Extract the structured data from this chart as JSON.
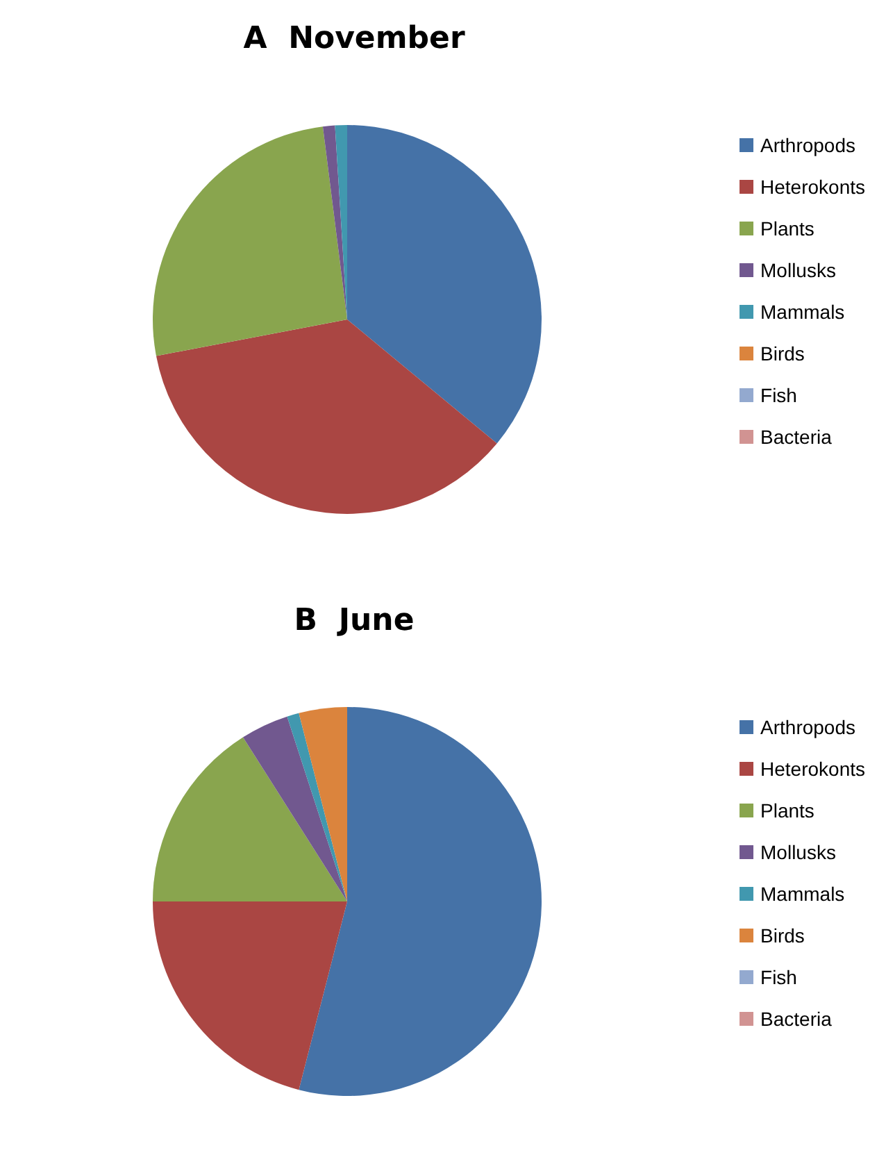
{
  "chart_data": [
    {
      "type": "pie",
      "title": "A  November",
      "categories": [
        "Arthropods",
        "Heterokonts",
        "Plants",
        "Mollusks",
        "Mammals",
        "Birds",
        "Fish",
        "Bacteria"
      ],
      "values": [
        36,
        36,
        26,
        1,
        1,
        0,
        0,
        0
      ],
      "colors": [
        "#4572a7",
        "#aa4643",
        "#89a54e",
        "#71588f",
        "#4198af",
        "#db843d",
        "#93a9cf",
        "#d19392"
      ],
      "legend": "right"
    },
    {
      "type": "pie",
      "title": "B  June",
      "categories": [
        "Arthropods",
        "Heterokonts",
        "Plants",
        "Mollusks",
        "Mammals",
        "Birds",
        "Fish",
        "Bacteria"
      ],
      "values": [
        54,
        21,
        16,
        4,
        1,
        4,
        0,
        0
      ],
      "colors": [
        "#4572a7",
        "#aa4643",
        "#89a54e",
        "#71588f",
        "#4198af",
        "#db843d",
        "#93a9cf",
        "#d19392"
      ],
      "legend": "right"
    }
  ]
}
